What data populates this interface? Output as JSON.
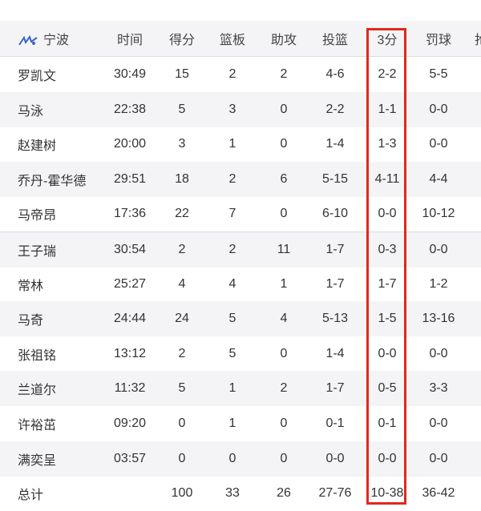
{
  "team": "宁波",
  "columns": [
    "时间",
    "得分",
    "篮板",
    "助攻",
    "投篮",
    "3分",
    "罚球",
    "抢"
  ],
  "highlight_color": "#e0281c",
  "players": [
    [
      "罗凯文",
      "30:49",
      "15",
      "2",
      "2",
      "4-6",
      "2-2",
      "5-5"
    ],
    [
      "马泳",
      "22:38",
      "5",
      "3",
      "0",
      "2-2",
      "1-1",
      "0-0"
    ],
    [
      "赵建树",
      "20:00",
      "3",
      "1",
      "0",
      "1-4",
      "1-3",
      "0-0"
    ],
    [
      "乔丹-霍华德",
      "29:51",
      "18",
      "2",
      "6",
      "5-15",
      "4-11",
      "4-4"
    ],
    [
      "马帝昂",
      "17:36",
      "22",
      "7",
      "0",
      "6-10",
      "0-0",
      "10-12"
    ],
    [
      "王子瑞",
      "30:54",
      "2",
      "2",
      "11",
      "1-7",
      "0-3",
      "0-0"
    ],
    [
      "常林",
      "25:27",
      "4",
      "4",
      "1",
      "1-7",
      "1-7",
      "1-2"
    ],
    [
      "马奇",
      "24:44",
      "24",
      "5",
      "4",
      "5-13",
      "1-5",
      "13-16"
    ],
    [
      "张祖铭",
      "13:12",
      "2",
      "5",
      "0",
      "1-4",
      "0-0",
      "0-0"
    ],
    [
      "兰道尔",
      "11:32",
      "5",
      "1",
      "2",
      "1-7",
      "0-5",
      "3-3"
    ],
    [
      "许裕茁",
      "09:20",
      "0",
      "1",
      "0",
      "0-1",
      "0-1",
      "0-0"
    ],
    [
      "满奕呈",
      "03:57",
      "0",
      "0",
      "0",
      "0-0",
      "0-0",
      "0-0"
    ]
  ],
  "total": [
    "总计",
    "",
    "100",
    "33",
    "26",
    "27-76",
    "10-38",
    "36-42"
  ]
}
